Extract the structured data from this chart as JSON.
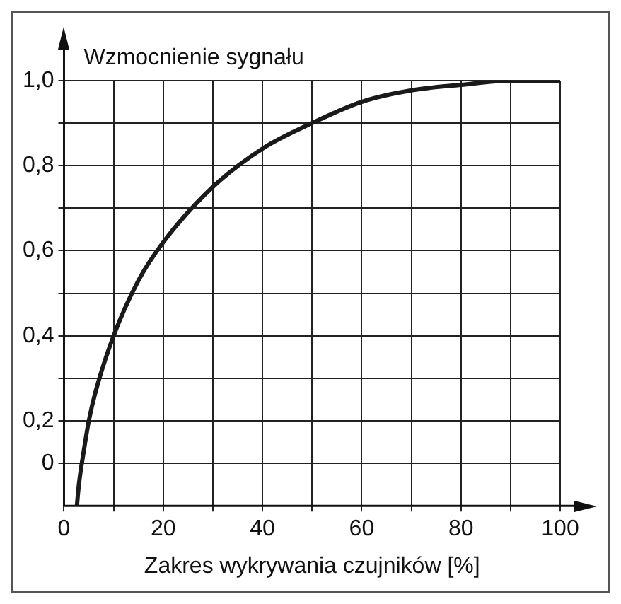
{
  "chart_data": {
    "type": "line",
    "xlabel": "Zakres wykrywania czujników [%]",
    "ylabel": "Wzmocnienie sygnału",
    "x": [
      2.6,
      3,
      4,
      5,
      6.4,
      10,
      15,
      20,
      30,
      40,
      50,
      60,
      70,
      80,
      90,
      100
    ],
    "series": [
      {
        "color": "#1a1a1a",
        "values": [
          0.0,
          0.05,
          0.13,
          0.2,
          0.27,
          0.4,
          0.53,
          0.62,
          0.75,
          0.84,
          0.9,
          0.95,
          0.977,
          0.99,
          1.0,
          1.0
        ]
      }
    ],
    "xlim": [
      0,
      100
    ],
    "xticks": [
      0,
      {
        "value": 10,
        "label": null
      },
      20,
      {
        "value": 30,
        "label": null
      },
      40,
      {
        "value": 50,
        "label": null
      },
      60,
      {
        "value": 70,
        "label": null
      },
      80,
      {
        "value": 90,
        "label": null
      },
      100
    ],
    "ylim": [
      0,
      1.0
    ],
    "yticks": [
      {
        "value": 0.1,
        "label": "0"
      },
      {
        "value": 0.2,
        "label": "0,2"
      },
      {
        "value": 0.3,
        "label": null
      },
      {
        "value": 0.4,
        "label": "0,4"
      },
      {
        "value": 0.5,
        "label": null
      },
      {
        "value": 0.6,
        "label": "0,6"
      },
      {
        "value": 0.7,
        "label": null
      },
      {
        "value": 0.8,
        "label": "0,8"
      },
      {
        "value": 0.9,
        "label": null
      },
      {
        "value": 1.0,
        "label": "1,0"
      }
    ],
    "grid": true,
    "legend": false,
    "marker": "none",
    "line_style": "solid"
  }
}
